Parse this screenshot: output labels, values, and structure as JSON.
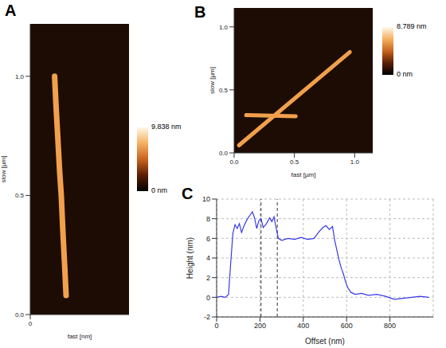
{
  "chart_data": [
    {
      "panel": "A",
      "type": "image",
      "xlabel": "fast [nm]",
      "ylabel": "slow [µm]",
      "xlim": [
        0,
        430
      ],
      "ylim": [
        0,
        1.22
      ],
      "xticks": [
        0
      ],
      "yticks": [
        {
          "value": 0,
          "label": "0.0"
        },
        {
          "value": 0.5,
          "label": "0.5"
        },
        {
          "value": 1,
          "label": "1.0"
        }
      ],
      "series": [
        {
          "color": "#f2a04c",
          "x": [
            106,
            112,
            120,
            128,
            135,
            142,
            150,
            156
          ],
          "values": [
            1.0,
            0.88,
            0.74,
            0.6,
            0.5,
            0.35,
            0.2,
            0.08
          ]
        }
      ],
      "colorbar": {
        "range": [
          0,
          9.838
        ],
        "ticks": [
          {
            "value": 0,
            "label": "0 nm"
          },
          {
            "value": 9.838,
            "label": "9.838 nm"
          }
        ]
      }
    },
    {
      "panel": "B",
      "type": "image",
      "xlabel": "fast [µm]",
      "ylabel": "slow [µm]",
      "xlim": [
        0,
        1.15
      ],
      "ylim": [
        0,
        1.15
      ],
      "xticks": [
        {
          "value": 0,
          "label": "0.0"
        },
        {
          "value": 0.5,
          "label": "0.5"
        },
        {
          "value": 1,
          "label": "1.0"
        }
      ],
      "yticks": [
        {
          "value": 0,
          "label": "0.0"
        },
        {
          "value": 0.5,
          "label": "0.5"
        },
        {
          "value": 1,
          "label": "1.0"
        }
      ],
      "series": [
        {
          "color": "#f2a04c",
          "x": [
            0.04,
            0.96
          ],
          "values": [
            0.06,
            0.8
          ]
        },
        {
          "color": "#f2a04c",
          "x": [
            0.1,
            0.51
          ],
          "values": [
            0.3,
            0.29
          ]
        }
      ],
      "colorbar": {
        "range": [
          0,
          8.789
        ],
        "ticks": [
          {
            "value": 0,
            "label": "0 nm"
          },
          {
            "value": 8.789,
            "label": "8.789 nm"
          }
        ]
      }
    },
    {
      "panel": "C",
      "type": "line",
      "xlabel": "Offset (nm)",
      "ylabel": "Height (nm)",
      "xlim": [
        0,
        1000
      ],
      "ylim": [
        -2,
        10
      ],
      "xticks": [
        0,
        200,
        400,
        600,
        800
      ],
      "yticks": [
        -2,
        0,
        2,
        4,
        6,
        8,
        10
      ],
      "grid": true,
      "reference_lines": [
        205,
        280
      ],
      "series": [
        {
          "color": "#3a3ae8",
          "x": [
            0,
            20,
            40,
            55,
            65,
            75,
            85,
            95,
            105,
            115,
            125,
            140,
            155,
            165,
            175,
            185,
            195,
            205,
            215,
            230,
            245,
            255,
            265,
            275,
            285,
            300,
            330,
            360,
            390,
            420,
            450,
            470,
            490,
            505,
            520,
            535,
            545,
            555,
            565,
            575,
            585,
            595,
            605,
            620,
            640,
            670,
            700,
            740,
            780,
            820,
            860,
            900,
            940,
            980
          ],
          "values": [
            0,
            0.1,
            0,
            0.3,
            3.5,
            6.5,
            7.4,
            7.0,
            7.5,
            6.6,
            7.2,
            7.9,
            8.4,
            8.7,
            8.1,
            7.0,
            7.8,
            8.0,
            7.1,
            7.5,
            8.1,
            7.7,
            8.2,
            7.0,
            6.0,
            5.8,
            6.0,
            5.9,
            6.1,
            5.9,
            6.0,
            6.6,
            7.1,
            7.3,
            6.9,
            7.2,
            5.8,
            4.8,
            3.8,
            3.0,
            2.4,
            1.6,
            1.0,
            0.5,
            0.3,
            0.4,
            0.2,
            0.3,
            0.1,
            -0.2,
            -0.1,
            0.0,
            0.1,
            0.0
          ]
        }
      ]
    }
  ]
}
